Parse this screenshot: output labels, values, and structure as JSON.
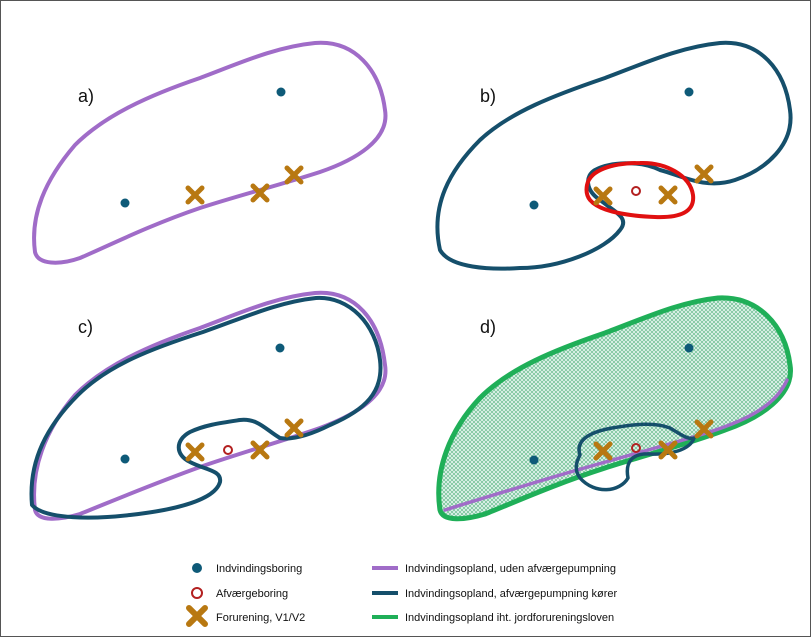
{
  "panels": [
    {
      "id": "a",
      "label": "a)"
    },
    {
      "id": "b",
      "label": "b)"
    },
    {
      "id": "c",
      "label": "c)"
    },
    {
      "id": "d",
      "label": "d)"
    }
  ],
  "colors": {
    "indvindingsboring": "#0e5a78",
    "afvaergeboring": "#b32020",
    "forurening": "#b87811",
    "opland_uden": "#a06cc8",
    "opland_koerer": "#154f6b",
    "opland_jord": "#1faf58",
    "afvaerge_zone": "#e01010",
    "hatch": "#2e9c5e"
  },
  "legend": {
    "indvindingsboring": "Indvindingsboring",
    "afvaergeboring": "Afværgeboring",
    "forurening": "Forurening, V1/V2",
    "opland_uden": "Indvindingsopland, uden afværgepumpning",
    "opland_koerer": "Indvindingsopland, afværgepumpning kører",
    "opland_jord": "Indvindingsopland iht. jordforureningsloven"
  }
}
